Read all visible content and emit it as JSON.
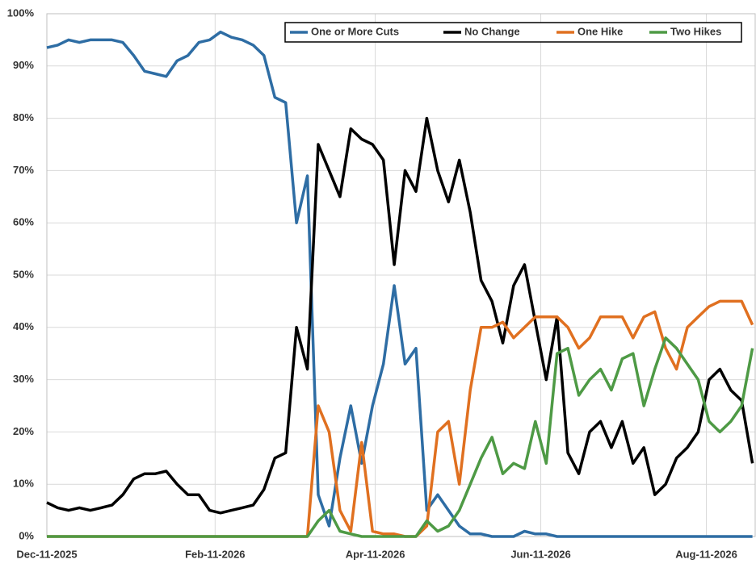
{
  "chart_data": {
    "type": "line",
    "x": [
      "Dec-11-2025",
      "Dec-15-2025",
      "Dec-19-2025",
      "Dec-23-2025",
      "Dec-27-2025",
      "Dec-31-2025",
      "Jan-04-2026",
      "Jan-08-2026",
      "Jan-12-2026",
      "Jan-16-2026",
      "Jan-20-2026",
      "Jan-24-2026",
      "Jan-28-2026",
      "Feb-01-2026",
      "Feb-05-2026",
      "Feb-09-2026",
      "Feb-13-2026",
      "Feb-17-2026",
      "Feb-21-2026",
      "Feb-25-2026",
      "Mar-01-2026",
      "Mar-05-2026",
      "Mar-09-2026",
      "Mar-13-2026",
      "Mar-17-2026",
      "Mar-21-2026",
      "Mar-25-2026",
      "Mar-29-2026",
      "Apr-02-2026",
      "Apr-06-2026",
      "Apr-10-2026",
      "Apr-14-2026",
      "Apr-18-2026",
      "Apr-22-2026",
      "Apr-26-2026",
      "Apr-30-2026",
      "May-04-2026",
      "May-08-2026",
      "May-12-2026",
      "May-16-2026",
      "May-20-2026",
      "May-24-2026",
      "May-28-2026",
      "Jun-01-2026",
      "Jun-05-2026",
      "Jun-09-2026",
      "Jun-13-2026",
      "Jun-17-2026",
      "Jun-21-2026",
      "Jun-25-2026",
      "Jun-29-2026",
      "Jul-03-2026",
      "Jul-07-2026",
      "Jul-11-2026",
      "Jul-15-2026",
      "Jul-19-2026",
      "Jul-23-2026",
      "Jul-27-2026",
      "Jul-31-2026",
      "Aug-04-2026",
      "Aug-08-2026",
      "Aug-12-2026",
      "Aug-16-2026",
      "Aug-20-2026",
      "Aug-24-2026",
      "Aug-28-2026"
    ],
    "xlim": [
      "Dec-11-2025",
      "Aug-29-2026"
    ],
    "xticks": [
      "Dec-11-2025",
      "Feb-11-2026",
      "Apr-11-2026",
      "Jun-11-2026",
      "Aug-11-2026"
    ],
    "ylim": [
      0,
      100
    ],
    "yticks": [
      {
        "value": 0,
        "label": "0%"
      },
      {
        "value": 10,
        "label": "10%"
      },
      {
        "value": 20,
        "label": "20%"
      },
      {
        "value": 30,
        "label": "30%"
      },
      {
        "value": 40,
        "label": "40%"
      },
      {
        "value": 50,
        "label": "50%"
      },
      {
        "value": 60,
        "label": "60%"
      },
      {
        "value": 70,
        "label": "70%"
      },
      {
        "value": 80,
        "label": "80%"
      },
      {
        "value": 90,
        "label": "90%"
      },
      {
        "value": 100,
        "label": "100%"
      }
    ],
    "grid": true,
    "legend": "top-right",
    "series": [
      {
        "name": "One or More Cuts",
        "color": "#2e6da4",
        "values": [
          93.5,
          94,
          95,
          94.5,
          95,
          95,
          95,
          94.5,
          92,
          89,
          88.5,
          88,
          91,
          92,
          94.5,
          95,
          96.5,
          95.5,
          95,
          94,
          92,
          84,
          83,
          60,
          69,
          8,
          2,
          15,
          25,
          14,
          25,
          33,
          48,
          33,
          36,
          5,
          8,
          5,
          2,
          0.5,
          0.5,
          0,
          0,
          0,
          1,
          0.5,
          0.5,
          0,
          0,
          0,
          0,
          0,
          0,
          0,
          0,
          0,
          0,
          0,
          0,
          0,
          0,
          0,
          0,
          0,
          0,
          0
        ]
      },
      {
        "name": "No Change",
        "color": "#000000",
        "values": [
          6.5,
          5.5,
          5,
          5.5,
          5,
          5.5,
          6,
          8,
          11,
          12,
          12,
          12.5,
          10,
          8,
          8,
          5,
          4.5,
          5,
          5.5,
          6,
          9,
          15,
          16,
          40,
          32,
          75,
          70,
          65,
          78,
          76,
          75,
          72,
          52,
          70,
          66,
          80,
          70,
          64,
          72,
          62,
          49,
          45,
          37,
          48,
          52,
          41,
          30,
          42,
          16,
          12,
          20,
          22,
          17,
          22,
          14,
          17,
          8,
          10,
          15,
          17,
          20,
          30,
          32,
          28,
          26,
          14
        ]
      },
      {
        "name": "One Hike",
        "color": "#e07020",
        "values": [
          0,
          0,
          0,
          0,
          0,
          0,
          0,
          0,
          0,
          0,
          0,
          0,
          0,
          0,
          0,
          0,
          0,
          0,
          0,
          0,
          0,
          0,
          0,
          0,
          0,
          25,
          20,
          5,
          1,
          18,
          1,
          0.5,
          0.5,
          0,
          0,
          2,
          20,
          22,
          10,
          28,
          40,
          40,
          41,
          38,
          40,
          42,
          42,
          42,
          40,
          36,
          38,
          42,
          42,
          42,
          38,
          42,
          43,
          36,
          32,
          40,
          42,
          44,
          45,
          45,
          45,
          40.5
        ]
      },
      {
        "name": "Two Hikes",
        "color": "#4e9a45",
        "values": [
          0,
          0,
          0,
          0,
          0,
          0,
          0,
          0,
          0,
          0,
          0,
          0,
          0,
          0,
          0,
          0,
          0,
          0,
          0,
          0,
          0,
          0,
          0,
          0,
          0,
          3,
          5,
          1,
          0.5,
          0,
          0,
          0,
          0,
          0,
          0,
          3,
          1,
          2,
          5,
          10,
          15,
          19,
          12,
          14,
          13,
          22,
          14,
          35,
          36,
          27,
          30,
          32,
          28,
          34,
          35,
          25,
          32,
          38,
          36,
          33,
          30,
          22,
          20,
          22,
          25,
          36
        ]
      }
    ]
  }
}
